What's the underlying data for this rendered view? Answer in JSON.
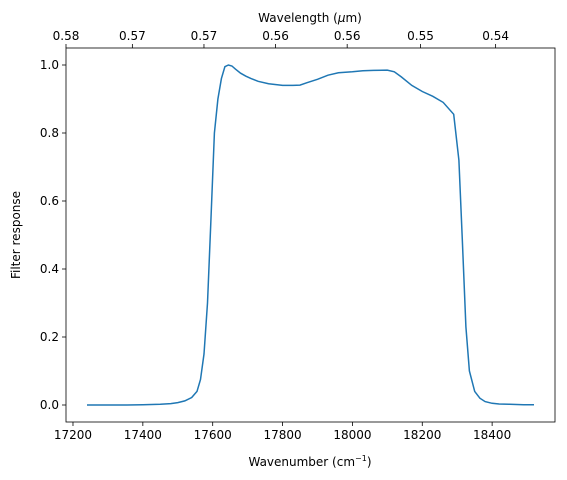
{
  "chart_data": {
    "type": "line",
    "xlabel": "Wavenumber (cm",
    "xlabel_sup": "−1",
    "xlabel_end": ")",
    "ylabel": "Filter response",
    "top_xlabel": "Wavelength (",
    "top_xlabel_mu": "μ",
    "top_xlabel_end": "m)",
    "xlim": [
      17180,
      18580
    ],
    "ylim": [
      -0.05,
      1.05
    ],
    "x_ticks": [
      17200,
      17400,
      17600,
      17800,
      18000,
      18200,
      18400
    ],
    "y_ticks": [
      0.0,
      0.2,
      0.4,
      0.6,
      0.8,
      1.0
    ],
    "top_ticks": [
      {
        "x": 17180,
        "label": "0.58"
      },
      {
        "x": 17370,
        "label": "0.57"
      },
      {
        "x": 17575,
        "label": "0.57"
      },
      {
        "x": 17780,
        "label": "0.56"
      },
      {
        "x": 17985,
        "label": "0.56"
      },
      {
        "x": 18195,
        "label": "0.55"
      },
      {
        "x": 18410,
        "label": "0.54"
      }
    ],
    "line_color": "#1f77b4",
    "series": [
      {
        "x": [
          17240,
          17300,
          17350,
          17400,
          17450,
          17480,
          17500,
          17520,
          17540,
          17555,
          17565,
          17575,
          17585,
          17595,
          17605,
          17615,
          17625,
          17635,
          17645,
          17655,
          17665,
          17680,
          17695,
          17710,
          17730,
          17760,
          17800,
          17830,
          17850,
          17870,
          17900,
          17930,
          17960,
          18000,
          18030,
          18060,
          18100,
          18120,
          18140,
          18170,
          18200,
          18230,
          18260,
          18290,
          18305,
          18315,
          18325,
          18335,
          18350,
          18365,
          18380,
          18400,
          18420,
          18450,
          18490,
          18520
        ],
        "y": [
          0.0,
          0.0,
          0.0,
          0.001,
          0.002,
          0.004,
          0.007,
          0.012,
          0.022,
          0.04,
          0.075,
          0.15,
          0.3,
          0.55,
          0.8,
          0.9,
          0.96,
          0.995,
          1.0,
          0.997,
          0.988,
          0.976,
          0.967,
          0.96,
          0.952,
          0.945,
          0.94,
          0.94,
          0.941,
          0.948,
          0.958,
          0.97,
          0.977,
          0.98,
          0.983,
          0.984,
          0.985,
          0.98,
          0.965,
          0.94,
          0.922,
          0.908,
          0.89,
          0.855,
          0.72,
          0.48,
          0.23,
          0.1,
          0.04,
          0.02,
          0.01,
          0.005,
          0.003,
          0.002,
          0.001,
          0.001
        ]
      }
    ]
  }
}
